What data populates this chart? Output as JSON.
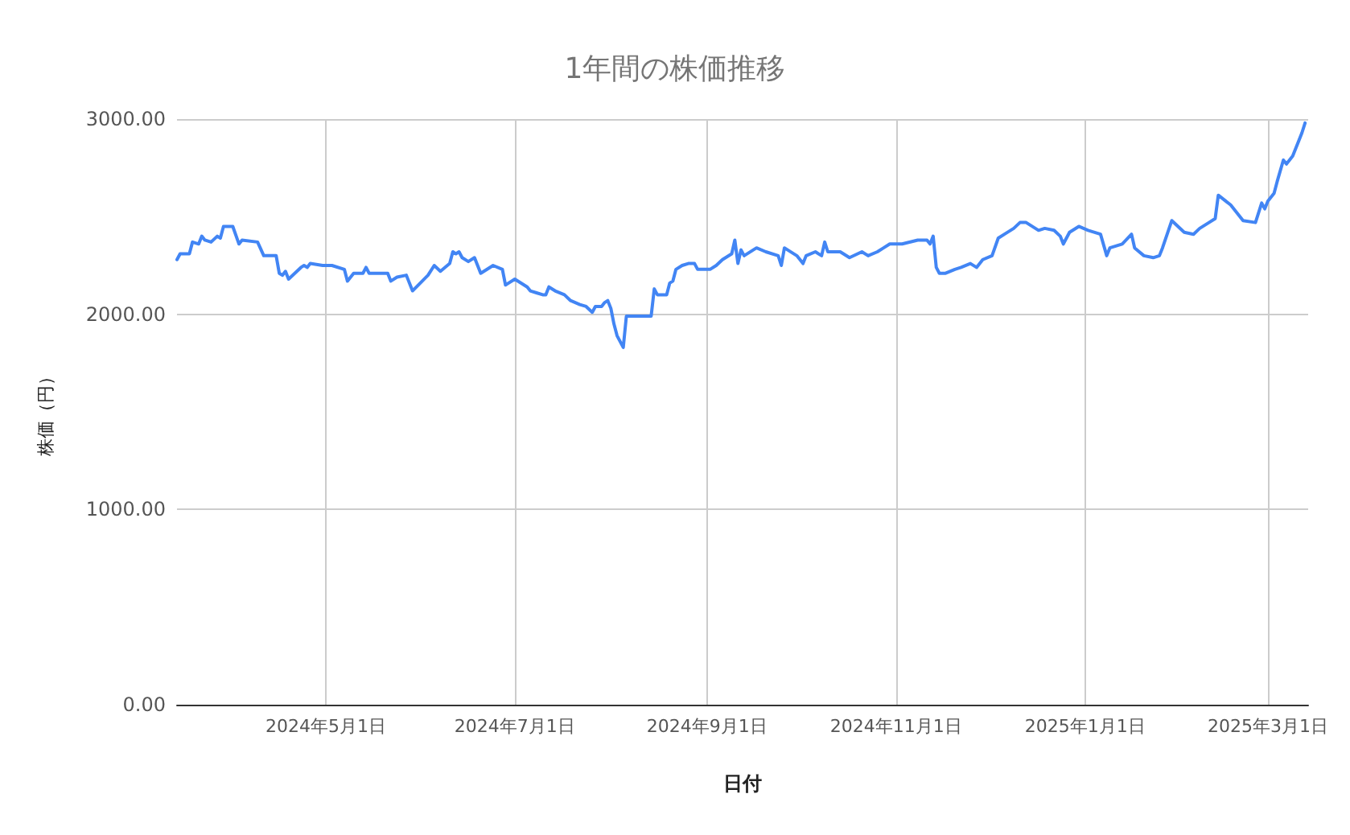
{
  "chart_data": {
    "type": "line",
    "title": "1年間の株価推移",
    "xlabel": "日付",
    "ylabel": "株価（円）",
    "x": [
      "2024-03-14",
      "2024-03-15",
      "2024-03-18",
      "2024-03-19",
      "2024-03-21",
      "2024-03-22",
      "2024-03-23",
      "2024-03-25",
      "2024-03-27",
      "2024-03-28",
      "2024-03-29",
      "2024-04-01",
      "2024-04-03",
      "2024-04-04",
      "2024-04-09",
      "2024-04-11",
      "2024-04-12",
      "2024-04-15",
      "2024-04-16",
      "2024-04-17",
      "2024-04-18",
      "2024-04-19",
      "2024-04-21",
      "2024-04-23",
      "2024-04-24",
      "2024-04-25",
      "2024-04-26",
      "2024-04-30",
      "2024-05-03",
      "2024-05-07",
      "2024-05-08",
      "2024-05-10",
      "2024-05-13",
      "2024-05-14",
      "2024-05-15",
      "2024-05-18",
      "2024-05-21",
      "2024-05-22",
      "2024-05-24",
      "2024-05-27",
      "2024-05-29",
      "2024-06-03",
      "2024-06-05",
      "2024-06-07",
      "2024-06-10",
      "2024-06-11",
      "2024-06-12",
      "2024-06-13",
      "2024-06-14",
      "2024-06-16",
      "2024-06-18",
      "2024-06-20",
      "2024-06-24",
      "2024-06-27",
      "2024-06-28",
      "2024-06-29",
      "2024-07-01",
      "2024-07-05",
      "2024-07-06",
      "2024-07-08",
      "2024-07-10",
      "2024-07-11",
      "2024-07-12",
      "2024-07-14",
      "2024-07-17",
      "2024-07-19",
      "2024-07-22",
      "2024-07-24",
      "2024-07-26",
      "2024-07-27",
      "2024-07-29",
      "2024-07-30",
      "2024-07-31",
      "2024-08-01",
      "2024-08-02",
      "2024-08-03",
      "2024-08-05",
      "2024-08-06",
      "2024-08-09",
      "2024-08-14",
      "2024-08-15",
      "2024-08-16",
      "2024-08-19",
      "2024-08-20",
      "2024-08-21",
      "2024-08-22",
      "2024-08-24",
      "2024-08-26",
      "2024-08-28",
      "2024-08-29",
      "2024-09-02",
      "2024-09-04",
      "2024-09-06",
      "2024-09-09",
      "2024-09-10",
      "2024-09-11",
      "2024-09-12",
      "2024-09-13",
      "2024-09-17",
      "2024-09-20",
      "2024-09-24",
      "2024-09-25",
      "2024-09-26",
      "2024-09-30",
      "2024-10-02",
      "2024-10-03",
      "2024-10-06",
      "2024-10-08",
      "2024-10-09",
      "2024-10-10",
      "2024-10-14",
      "2024-10-17",
      "2024-10-21",
      "2024-10-23",
      "2024-10-26",
      "2024-10-28",
      "2024-10-30",
      "2024-11-03",
      "2024-11-08",
      "2024-11-11",
      "2024-11-12",
      "2024-11-13",
      "2024-11-14",
      "2024-11-15",
      "2024-11-17",
      "2024-11-20",
      "2024-11-22",
      "2024-11-25",
      "2024-11-27",
      "2024-11-29",
      "2024-12-02",
      "2024-12-04",
      "2024-12-06",
      "2024-12-09",
      "2024-12-11",
      "2024-12-13",
      "2024-12-17",
      "2024-12-19",
      "2024-12-22",
      "2024-12-24",
      "2024-12-25",
      "2024-12-27",
      "2024-12-30",
      "2025-01-02",
      "2025-01-06",
      "2025-01-08",
      "2025-01-09",
      "2025-01-13",
      "2025-01-16",
      "2025-01-17",
      "2025-01-20",
      "2025-01-23",
      "2025-01-25",
      "2025-01-26",
      "2025-01-29",
      "2025-02-02",
      "2025-02-05",
      "2025-02-07",
      "2025-02-10",
      "2025-02-12",
      "2025-02-13",
      "2025-02-17",
      "2025-02-19",
      "2025-02-21",
      "2025-02-25",
      "2025-02-27",
      "2025-02-28",
      "2025-03-01",
      "2025-03-03",
      "2025-03-04",
      "2025-03-06",
      "2025-03-07",
      "2025-03-09",
      "2025-03-11",
      "2025-03-12",
      "2025-03-13"
    ],
    "values": [
      2280,
      2310,
      2310,
      2370,
      2360,
      2400,
      2380,
      2370,
      2400,
      2390,
      2450,
      2450,
      2360,
      2380,
      2370,
      2300,
      2300,
      2300,
      2210,
      2200,
      2220,
      2180,
      2210,
      2240,
      2250,
      2240,
      2260,
      2250,
      2250,
      2230,
      2170,
      2210,
      2210,
      2240,
      2210,
      2210,
      2210,
      2170,
      2190,
      2200,
      2120,
      2200,
      2250,
      2220,
      2260,
      2320,
      2310,
      2320,
      2290,
      2270,
      2290,
      2210,
      2250,
      2230,
      2150,
      2160,
      2180,
      2140,
      2120,
      2110,
      2100,
      2100,
      2140,
      2120,
      2100,
      2070,
      2050,
      2040,
      2010,
      2040,
      2040,
      2060,
      2070,
      2030,
      1950,
      1890,
      1830,
      1990,
      1990,
      1990,
      2130,
      2100,
      2100,
      2160,
      2170,
      2230,
      2250,
      2260,
      2260,
      2230,
      2230,
      2250,
      2280,
      2310,
      2380,
      2260,
      2330,
      2300,
      2340,
      2320,
      2300,
      2250,
      2340,
      2300,
      2260,
      2300,
      2320,
      2300,
      2370,
      2320,
      2320,
      2290,
      2320,
      2300,
      2320,
      2340,
      2360,
      2360,
      2380,
      2380,
      2360,
      2400,
      2240,
      2210,
      2210,
      2230,
      2240,
      2260,
      2240,
      2280,
      2300,
      2390,
      2410,
      2440,
      2470,
      2470,
      2430,
      2440,
      2430,
      2400,
      2360,
      2420,
      2450,
      2430,
      2410,
      2300,
      2340,
      2360,
      2410,
      2340,
      2300,
      2290,
      2300,
      2340,
      2480,
      2420,
      2410,
      2440,
      2470,
      2490,
      2610,
      2560,
      2520,
      2480,
      2470,
      2570,
      2540,
      2580,
      2620,
      2680,
      2790,
      2770,
      2810,
      2890,
      2930,
      2980
    ],
    "color": "#4285f4",
    "xlim": [
      "2024-03-14",
      "2025-03-14"
    ],
    "xticks": [
      {
        "value": "2024-05-01",
        "label": "2024年5月1日"
      },
      {
        "value": "2024-07-01",
        "label": "2024年7月1日"
      },
      {
        "value": "2024-09-01",
        "label": "2024年9月1日"
      },
      {
        "value": "2024-11-01",
        "label": "2024年11月1日"
      },
      {
        "value": "2025-01-01",
        "label": "2025年1月1日"
      },
      {
        "value": "2025-03-01",
        "label": "2025年3月1日"
      }
    ],
    "ylim": [
      0,
      3000
    ],
    "yticks": [
      {
        "value": 0,
        "label": "0.00"
      },
      {
        "value": 1000,
        "label": "1000.00"
      },
      {
        "value": 2000,
        "label": "2000.00"
      },
      {
        "value": 3000,
        "label": "3000.00"
      }
    ],
    "grid": true,
    "marker": "none",
    "line_style": "solid"
  }
}
